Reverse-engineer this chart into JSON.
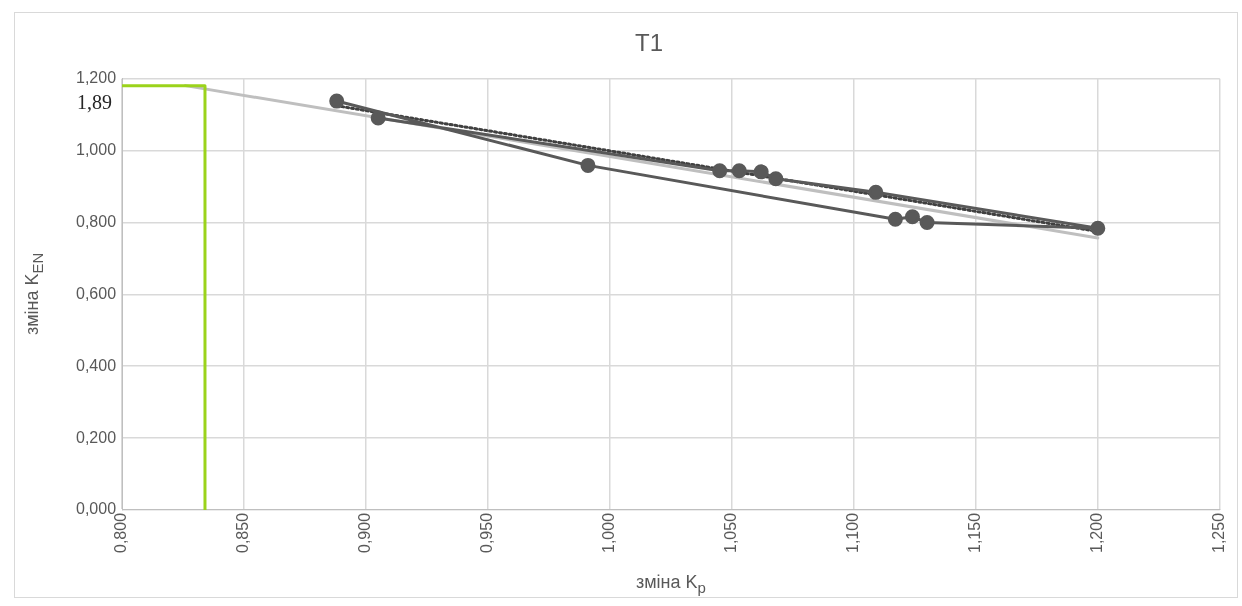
{
  "chart_data": {
    "type": "line",
    "title": "T1",
    "xlabel": "зміна K$_{p}$",
    "ylabel": "зміна K$_{EN}$",
    "xlim": [
      0.8,
      1.25
    ],
    "xticks": [
      {
        "value": 0.8,
        "label": "0,800"
      },
      {
        "value": 0.85,
        "label": "0,850"
      },
      {
        "value": 0.9,
        "label": "0,900"
      },
      {
        "value": 0.95,
        "label": "0,950"
      },
      {
        "value": 1.0,
        "label": "1,000"
      },
      {
        "value": 1.05,
        "label": "1,050"
      },
      {
        "value": 1.1,
        "label": "1,100"
      },
      {
        "value": 1.15,
        "label": "1,150"
      },
      {
        "value": 1.2,
        "label": "1,200"
      },
      {
        "value": 1.25,
        "label": "1,250"
      }
    ],
    "ylim": [
      0,
      1.2
    ],
    "yticks": [
      {
        "value": 0,
        "label": "0,000"
      },
      {
        "value": 0.2,
        "label": "0,200"
      },
      {
        "value": 0.4,
        "label": "0,400"
      },
      {
        "value": 0.6,
        "label": "0,600"
      },
      {
        "value": 0.8,
        "label": "0,800"
      },
      {
        "value": 1.0,
        "label": "1,000"
      },
      {
        "value": 1.2,
        "label": "1,200"
      }
    ],
    "grid": true,
    "legend": false,
    "annotations": [
      "1,89"
    ],
    "series": [
      {
        "color": "#bfbfbf",
        "marker": "none",
        "line_style": "solid",
        "x": [
          0.826,
          1.2
        ],
        "values": [
          1.181,
          0.757
        ]
      },
      {
        "color": "#404040",
        "marker": "none",
        "line_style": "dotted",
        "x": [
          0.888,
          1.2
        ],
        "values": [
          1.125,
          0.775
        ]
      },
      {
        "color": "#595959",
        "marker": "circle",
        "line_style": "solid",
        "x": [
          0.888,
          0.991,
          1.117,
          1.124,
          1.13,
          1.2,
          1.109,
          1.068,
          1.062,
          1.053,
          1.045,
          0.905
        ],
        "values": [
          1.138,
          0.959,
          0.809,
          0.816,
          0.8,
          0.784,
          0.884,
          0.922,
          0.941,
          0.944,
          0.944,
          1.091
        ]
      },
      {
        "color": "#9bd31b",
        "marker": "none",
        "line_style": "solid",
        "x": [
          0.8,
          0.834,
          0.834
        ],
        "values": [
          1.181,
          1.181,
          0
        ]
      }
    ]
  }
}
